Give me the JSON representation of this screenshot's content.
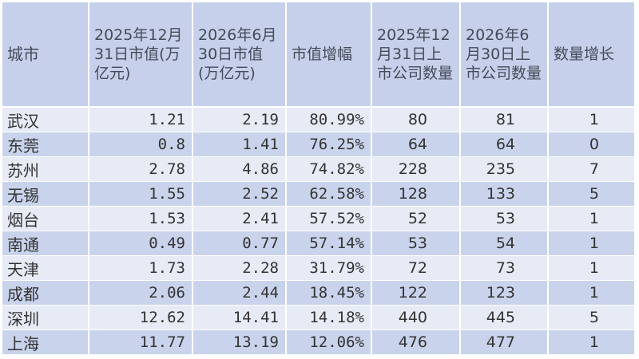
{
  "table": {
    "headers": [
      "城市",
      "2025年12月31日市值(万亿元)",
      "2026年6月30日市值 (万亿元)",
      "市值增幅",
      "2025年12月31日上市公司数量",
      "2026年6月30日上市公司数量",
      "数量增长"
    ],
    "rows": [
      [
        "武汉",
        "1.21",
        "2.19",
        "80.99%",
        "80",
        "81",
        "1"
      ],
      [
        "东莞",
        "0.8",
        "1.41",
        "76.25%",
        "64",
        "64",
        "0"
      ],
      [
        "苏州",
        "2.78",
        "4.86",
        "74.82%",
        "228",
        "235",
        "7"
      ],
      [
        "无锡",
        "1.55",
        "2.52",
        "62.58%",
        "128",
        "133",
        "5"
      ],
      [
        "烟台",
        "1.53",
        "2.41",
        "57.52%",
        "52",
        "53",
        "1"
      ],
      [
        "南通",
        "0.49",
        "0.77",
        "57.14%",
        "53",
        "54",
        "1"
      ],
      [
        "天津",
        "1.73",
        "2.28",
        "31.79%",
        "72",
        "73",
        "1"
      ],
      [
        "成都",
        "2.06",
        "2.44",
        "18.45%",
        "122",
        "123",
        "1"
      ],
      [
        "深圳",
        "12.62",
        "14.41",
        "14.18%",
        "440",
        "445",
        "5"
      ],
      [
        "上海",
        "11.77",
        "13.19",
        "12.06%",
        "476",
        "477",
        "1"
      ]
    ]
  },
  "colors": {
    "header_bg": "#c6d0ea",
    "row_light": "#e7ebf6",
    "row_dark": "#c9d3ec"
  }
}
